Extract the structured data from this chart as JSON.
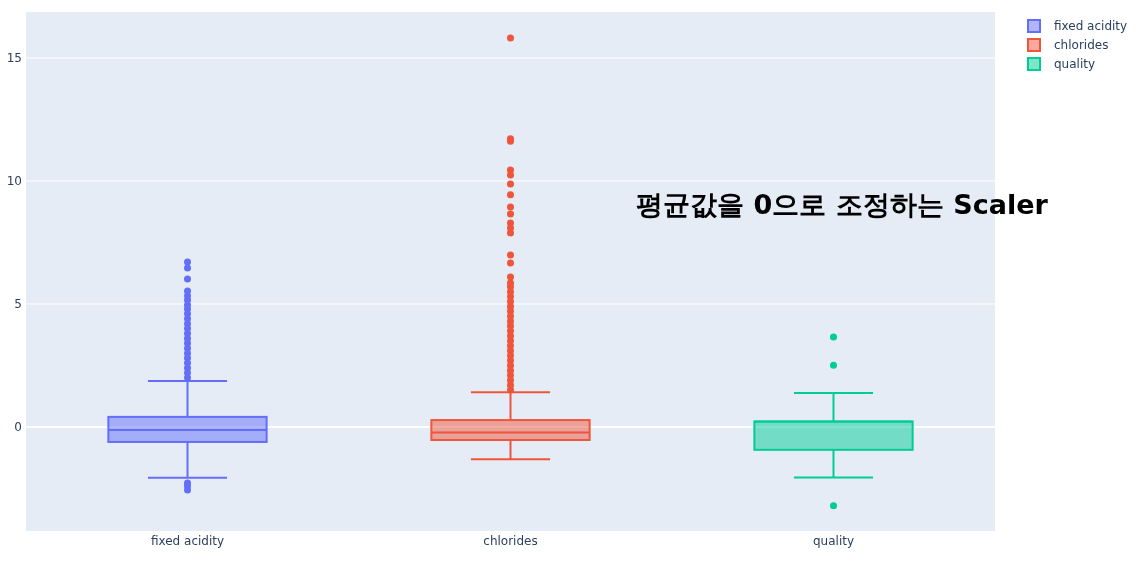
{
  "chart_data": {
    "type": "box",
    "categories": [
      "fixed acidity",
      "chlorides",
      "quality"
    ],
    "series": [
      {
        "name": "fixed acidity",
        "color": "#636efa",
        "boxes": [
          {
            "low": -2.07,
            "q1": -0.61,
            "median": -0.12,
            "q3": 0.41,
            "high": 1.87,
            "outliers": [
              6.71,
              6.46,
              6.02,
              5.53,
              5.33,
              5.16,
              4.96,
              4.8,
              4.6,
              4.4,
              4.2,
              4.0,
              3.8,
              3.6,
              3.4,
              3.2,
              3.0,
              2.8,
              2.6,
              2.4,
              2.2,
              2.0,
              -2.28,
              -2.4,
              -2.56
            ]
          },
          null,
          null
        ]
      },
      {
        "name": "chlorides",
        "color": "#ef553b",
        "boxes": [
          null,
          {
            "low": -1.31,
            "q1": -0.53,
            "median": -0.23,
            "q3": 0.28,
            "high": 1.41,
            "outliers": [
              15.81,
              11.72,
              11.62,
              10.45,
              10.24,
              9.88,
              9.44,
              8.94,
              8.66,
              8.29,
              8.09,
              7.89,
              6.99,
              6.67,
              6.1,
              5.85,
              5.7,
              5.5,
              5.3,
              5.1,
              4.9,
              4.7,
              4.5,
              4.3,
              4.1,
              3.9,
              3.7,
              3.5,
              3.3,
              3.1,
              2.9,
              2.7,
              2.5,
              2.3,
              2.1,
              1.9,
              1.7,
              1.5
            ]
          },
          null
        ]
      },
      {
        "name": "quality",
        "color": "#00cc96",
        "boxes": [
          null,
          null,
          {
            "low": -2.06,
            "q1": -0.93,
            "median": 0.22,
            "q3": 0.22,
            "high": 1.38,
            "outliers": [
              3.66,
              2.51,
              -3.2
            ]
          }
        ]
      }
    ],
    "ylim": [
      -4.23,
      16.87
    ],
    "yticks": [
      0,
      5,
      10,
      15
    ],
    "grid": "y",
    "legend": "top right",
    "annotations": [
      "평균값을 0으로 조정하는 Scaler"
    ]
  }
}
